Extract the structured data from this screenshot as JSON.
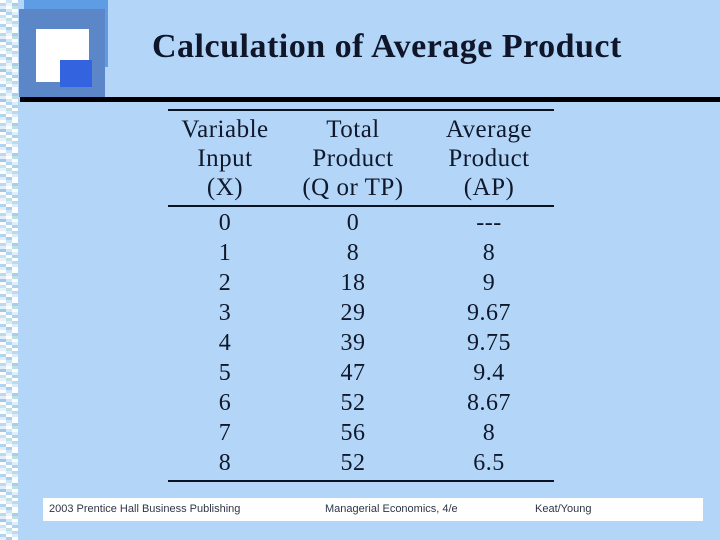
{
  "slide": {
    "title": "Calculation of Average Product",
    "colors": {
      "background": "#b3d5f8",
      "logo_slate": "#5b86c8",
      "logo_light": "#5e9ce4",
      "logo_royal": "#3363de",
      "title_text": "#10162a",
      "rule": "#000000",
      "footer_bg": "#ffffff",
      "footer_text": "#2d3648"
    }
  },
  "table": {
    "columns": [
      {
        "lines": [
          "Variable",
          "Input",
          "(X)"
        ]
      },
      {
        "lines": [
          "Total",
          "Product",
          "(Q or TP)"
        ]
      },
      {
        "lines": [
          "Average",
          "Product",
          "(AP)"
        ]
      }
    ],
    "rows": [
      [
        "0",
        "0",
        "---"
      ],
      [
        "1",
        "8",
        "8"
      ],
      [
        "2",
        "18",
        "9"
      ],
      [
        "3",
        "29",
        "9.67"
      ],
      [
        "4",
        "39",
        "9.75"
      ],
      [
        "5",
        "47",
        "9.4"
      ],
      [
        "6",
        "52",
        "8.67"
      ],
      [
        "7",
        "56",
        "8"
      ],
      [
        "8",
        "52",
        "6.5"
      ]
    ]
  },
  "footer": {
    "publisher": "2003 Prentice Hall Business Publishing",
    "book": "Managerial Economics, 4/e",
    "authors": "Keat/Young"
  }
}
